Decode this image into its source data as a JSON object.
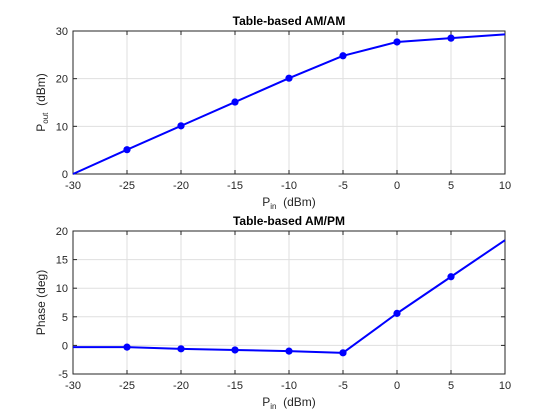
{
  "chart_data": [
    {
      "type": "line",
      "title": "Table-based AM/AM",
      "xlabel": {
        "main": "P",
        "sub": "in",
        "unit": "  (dBm)"
      },
      "ylabel": {
        "main": "P",
        "sub": "out",
        "unit": "  (dBm)"
      },
      "xlim": [
        -30,
        10
      ],
      "ylim": [
        0,
        30
      ],
      "xticks": [
        -30,
        -25,
        -20,
        -15,
        -10,
        -5,
        0,
        5,
        10
      ],
      "yticks": [
        0,
        10,
        20,
        30
      ],
      "grid": true,
      "series": [
        {
          "line_x": [
            -30,
            -25,
            -20,
            -15,
            -10,
            -5,
            0,
            5,
            10
          ],
          "line_y": [
            0,
            5.1,
            10.1,
            15.1,
            20.1,
            24.8,
            27.7,
            28.5,
            29.3
          ],
          "marker_x": [
            -25,
            -20,
            -15,
            -10,
            -5,
            0,
            5
          ],
          "marker_y": [
            5.1,
            10.1,
            15.1,
            20.1,
            24.8,
            27.7,
            28.5
          ],
          "color": "#0000ff"
        }
      ]
    },
    {
      "type": "line",
      "title": "Table-based AM/PM",
      "xlabel": {
        "main": "P",
        "sub": "in",
        "unit": "  (dBm)"
      },
      "ylabel": {
        "main": "Phase (deg)",
        "sub": "",
        "unit": ""
      },
      "xlim": [
        -30,
        10
      ],
      "ylim": [
        -5,
        20
      ],
      "xticks": [
        -30,
        -25,
        -20,
        -15,
        -10,
        -5,
        0,
        5,
        10
      ],
      "yticks": [
        -5,
        0,
        5,
        10,
        15,
        20
      ],
      "grid": true,
      "series": [
        {
          "line_x": [
            -30,
            -25,
            -20,
            -15,
            -10,
            -5,
            0,
            5,
            10
          ],
          "line_y": [
            -0.3,
            -0.3,
            -0.6,
            -0.8,
            -1.0,
            -1.3,
            5.6,
            12.0,
            18.4
          ],
          "marker_x": [
            -25,
            -20,
            -15,
            -10,
            -5,
            0,
            5
          ],
          "marker_y": [
            -0.3,
            -0.6,
            -0.8,
            -1.0,
            -1.3,
            5.6,
            12.0
          ],
          "color": "#0000ff"
        }
      ]
    }
  ]
}
